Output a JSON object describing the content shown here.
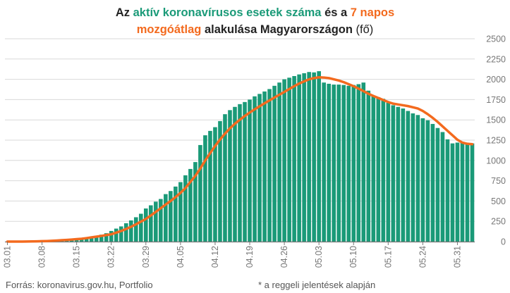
{
  "title": {
    "line1": [
      {
        "text": "Az ",
        "style": "normal"
      },
      {
        "text": "aktív koronavírusos esetek száma",
        "style": "green"
      },
      {
        "text": " és a ",
        "style": "normal"
      },
      {
        "text": "7 napos",
        "style": "orange"
      }
    ],
    "line2": [
      {
        "text": "mozgóátlag",
        "style": "orange"
      },
      {
        "text": " alakulása Magyarországon ",
        "style": "normal"
      },
      {
        "text": "(fő)",
        "style": "plain"
      }
    ]
  },
  "colors": {
    "bars": "#1a9a78",
    "line": "#f36a1e",
    "grid": "#d9d9d9",
    "axis": "#777777"
  },
  "footer": {
    "source": "Forrás: koronavirus.gov.hu, Portfolio",
    "note": "* a reggeli jelentések alapján"
  },
  "chart_data": {
    "type": "bar",
    "y_axis_side": "right",
    "ylim": [
      0,
      2500
    ],
    "yticks": [
      0,
      250,
      500,
      750,
      1000,
      1250,
      1500,
      1750,
      2000,
      2250,
      2500
    ],
    "xtick_labels": [
      "03.01",
      "03.08",
      "03.15",
      "03.22",
      "03.29",
      "04.05",
      "04.12",
      "04.19",
      "04.26",
      "05.03",
      "05.10",
      "05.17",
      "05.24",
      "05.31"
    ],
    "xtick_every": 7,
    "grid": true,
    "categories": [
      "03.01",
      "03.02",
      "03.03",
      "03.04",
      "03.05",
      "03.06",
      "03.07",
      "03.08",
      "03.09",
      "03.10",
      "03.11",
      "03.12",
      "03.13",
      "03.14",
      "03.15",
      "03.16",
      "03.17",
      "03.18",
      "03.19",
      "03.20",
      "03.21",
      "03.22",
      "03.23",
      "03.24",
      "03.25",
      "03.26",
      "03.27",
      "03.28",
      "03.29",
      "03.30",
      "03.31",
      "04.01",
      "04.02",
      "04.03",
      "04.04",
      "04.05",
      "04.06",
      "04.07",
      "04.08",
      "04.09",
      "04.10",
      "04.11",
      "04.12",
      "04.13",
      "04.14",
      "04.15",
      "04.16",
      "04.17",
      "04.18",
      "04.19",
      "04.20",
      "04.21",
      "04.22",
      "04.23",
      "04.24",
      "04.25",
      "04.26",
      "04.27",
      "04.28",
      "04.29",
      "04.30",
      "05.01",
      "05.02",
      "05.03",
      "05.04",
      "05.05",
      "05.06",
      "05.07",
      "05.08",
      "05.09",
      "05.10",
      "05.11",
      "05.12",
      "05.13",
      "05.14",
      "05.15",
      "05.16",
      "05.17",
      "05.18",
      "05.19",
      "05.20",
      "05.21",
      "05.22",
      "05.23",
      "05.24",
      "05.25",
      "05.26",
      "05.27",
      "05.28",
      "05.29",
      "05.30",
      "05.31",
      "06.01",
      "06.02",
      "06.03"
    ],
    "series": [
      {
        "name": "aktív koronavírusos esetek száma",
        "kind": "bar",
        "values": [
          0,
          0,
          0,
          0,
          2,
          4,
          7,
          9,
          12,
          13,
          16,
          19,
          25,
          30,
          32,
          39,
          50,
          58,
          73,
          85,
          103,
          131,
          160,
          187,
          226,
          261,
          300,
          343,
          408,
          447,
          492,
          525,
          585,
          623,
          678,
          733,
          817,
          895,
          980,
          1190,
          1310,
          1364,
          1410,
          1485,
          1570,
          1620,
          1660,
          1694,
          1720,
          1750,
          1790,
          1820,
          1850,
          1880,
          1920,
          1960,
          2000,
          2020,
          2040,
          2060,
          2075,
          2090,
          2085,
          2100,
          1960,
          1945,
          1935,
          1935,
          1930,
          1920,
          1930,
          1940,
          1960,
          1860,
          1800,
          1780,
          1760,
          1710,
          1680,
          1660,
          1640,
          1610,
          1580,
          1560,
          1520,
          1495,
          1450,
          1400,
          1350,
          1260,
          1210,
          1220,
          1230,
          1215,
          1210
        ]
      },
      {
        "name": "7 napos mozgóátlag",
        "kind": "line",
        "values": [
          0,
          0,
          0,
          0,
          1,
          2,
          3,
          5,
          7,
          10,
          13,
          17,
          21,
          25,
          30,
          35,
          43,
          52,
          61,
          70,
          80,
          90,
          110,
          130,
          155,
          182,
          213,
          246,
          279,
          322,
          366,
          411,
          457,
          500,
          548,
          600,
          660,
          735,
          810,
          900,
          1000,
          1090,
          1178,
          1258,
          1330,
          1396,
          1452,
          1502,
          1548,
          1590,
          1630,
          1668,
          1705,
          1740,
          1775,
          1810,
          1845,
          1880,
          1915,
          1948,
          1975,
          2000,
          2015,
          2025,
          2022,
          2015,
          2000,
          1985,
          1965,
          1940,
          1915,
          1885,
          1855,
          1822,
          1795,
          1770,
          1745,
          1720,
          1700,
          1690,
          1680,
          1670,
          1655,
          1640,
          1610,
          1570,
          1525,
          1475,
          1420,
          1365,
          1310,
          1255,
          1220,
          1205,
          1200
        ]
      }
    ]
  }
}
